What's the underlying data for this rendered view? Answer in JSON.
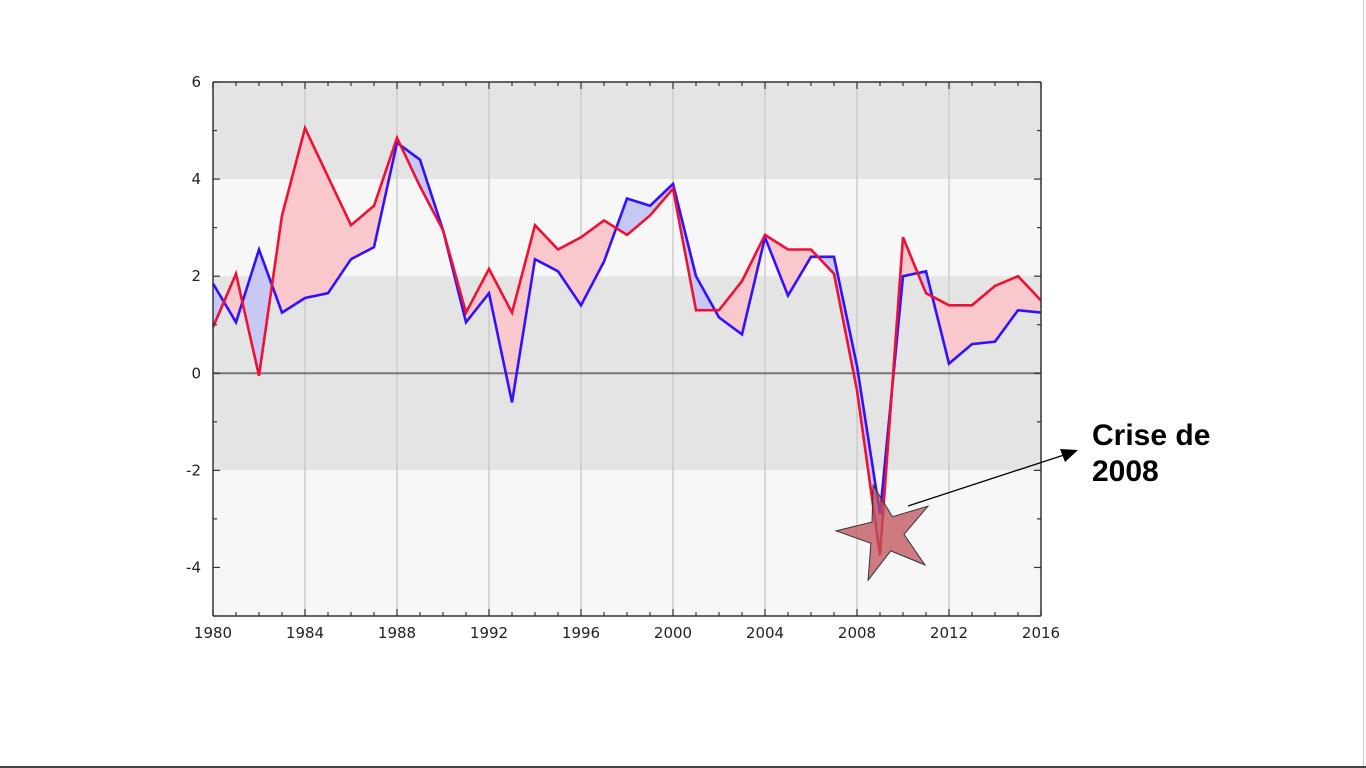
{
  "annotation": {
    "line1": "Crise de",
    "line2": "2008"
  },
  "colors": {
    "series_red": "#ee1133",
    "series_blue": "#3311ff",
    "fill_red_above": "#f8c8cc",
    "fill_blue_above": "#c8c8f4",
    "band_dark": "#e4e4e4",
    "band_light": "#f7f7f7",
    "star_fill": "#c0505a"
  },
  "chart_data": {
    "type": "line",
    "title": "",
    "xlabel": "",
    "ylabel": "",
    "xlim": [
      1980,
      2016
    ],
    "ylim": [
      -5,
      6
    ],
    "xticks": [
      1980,
      1984,
      1988,
      1992,
      1996,
      2000,
      2004,
      2008,
      2012,
      2016
    ],
    "yticks": [
      -4,
      -2,
      0,
      2,
      4,
      6
    ],
    "grid": true,
    "legend": "none",
    "x": [
      1980,
      1981,
      1982,
      1983,
      1984,
      1985,
      1986,
      1987,
      1988,
      1989,
      1990,
      1991,
      1992,
      1993,
      1994,
      1995,
      1996,
      1997,
      1998,
      1999,
      2000,
      2001,
      2002,
      2003,
      2004,
      2005,
      2006,
      2007,
      2008,
      2009,
      2010,
      2011,
      2012,
      2013,
      2014,
      2015,
      2016
    ],
    "series": [
      {
        "color": "red",
        "values": [
          0.95,
          2.05,
          -0.05,
          3.25,
          5.05,
          4.05,
          3.05,
          3.45,
          4.85,
          3.85,
          2.95,
          1.25,
          2.15,
          1.25,
          3.05,
          2.55,
          2.8,
          3.15,
          2.85,
          3.25,
          3.8,
          1.3,
          1.3,
          1.9,
          2.85,
          2.55,
          2.55,
          2.05,
          -0.35,
          -3.75,
          2.8,
          1.65,
          1.4,
          1.4,
          1.8,
          2.0,
          1.5
        ]
      },
      {
        "color": "blue",
        "values": [
          1.85,
          1.05,
          2.55,
          1.25,
          1.55,
          1.65,
          2.35,
          2.6,
          4.75,
          4.4,
          2.95,
          1.05,
          1.65,
          -0.6,
          2.35,
          2.1,
          1.4,
          2.3,
          3.6,
          3.45,
          3.9,
          2.0,
          1.15,
          0.8,
          2.8,
          1.6,
          2.4,
          2.4,
          0.15,
          -2.9,
          2.0,
          2.1,
          0.2,
          0.6,
          0.65,
          1.3,
          1.25
        ]
      }
    ],
    "annotations": [
      {
        "text_key": "annotation",
        "x": 2009,
        "y": -3.3,
        "marker": "star"
      }
    ]
  }
}
